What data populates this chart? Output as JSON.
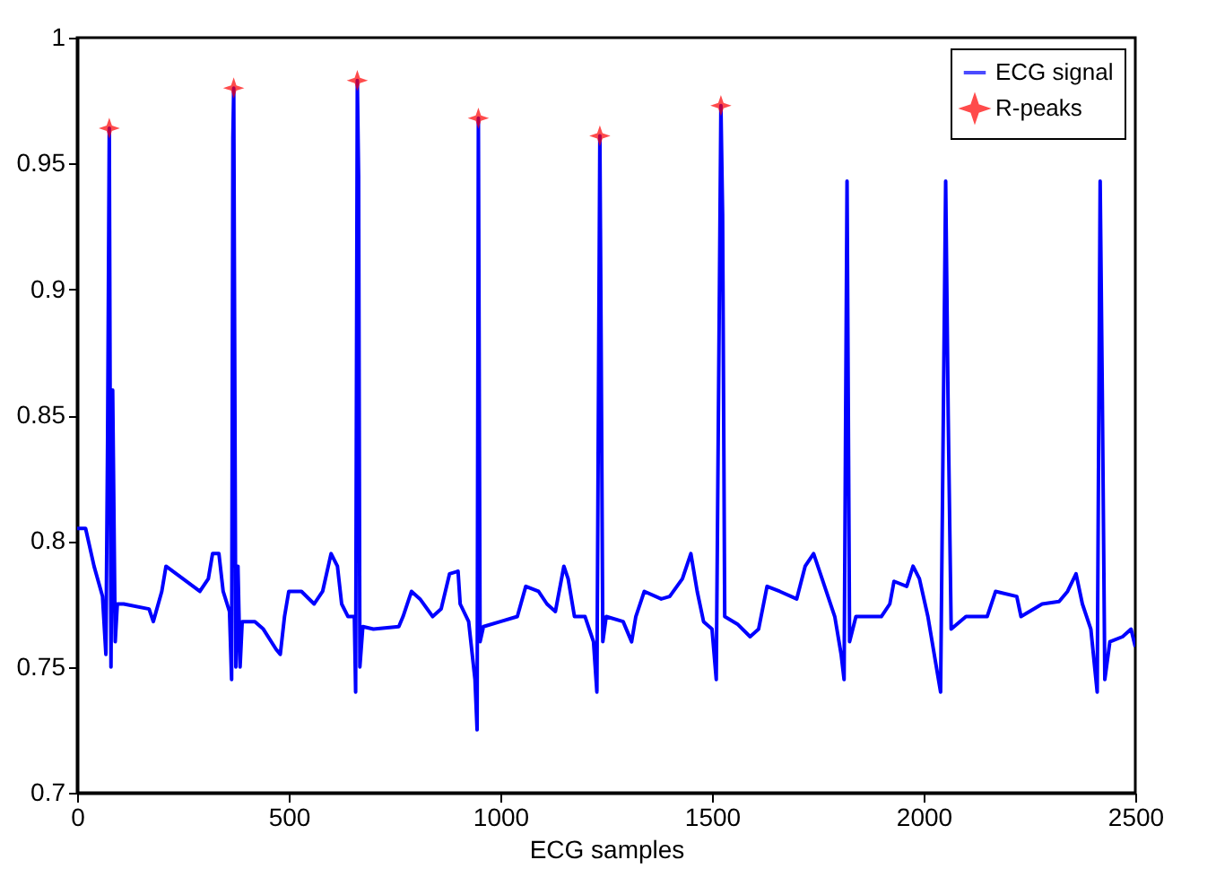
{
  "chart_data": {
    "type": "line",
    "xlabel": "ECG samples",
    "xlim": [
      0,
      2500
    ],
    "xticks": [
      0,
      500,
      1000,
      1500,
      2000,
      2500
    ],
    "ylim": [
      0.7,
      1
    ],
    "yticks": [
      0.7,
      0.75,
      0.8,
      0.85,
      0.9,
      0.95,
      1
    ],
    "grid": false,
    "legend": "top right",
    "series": [
      {
        "name": "ECG signal",
        "color": "#0000ff",
        "line_style": "solid",
        "x": [
          0,
          20,
          40,
          60,
          68,
          72,
          76,
          80,
          84,
          90,
          95,
          110,
          170,
          180,
          200,
          210,
          250,
          290,
          310,
          320,
          335,
          345,
          360,
          365,
          368,
          370,
          375,
          380,
          385,
          390,
          420,
          440,
          470,
          480,
          490,
          500,
          530,
          560,
          580,
          600,
          615,
          625,
          640,
          655,
          658,
          662,
          665,
          668,
          675,
          700,
          760,
          770,
          790,
          810,
          840,
          860,
          880,
          900,
          905,
          925,
          940,
          945,
          948,
          952,
          960,
          1000,
          1040,
          1060,
          1090,
          1110,
          1130,
          1150,
          1160,
          1175,
          1200,
          1220,
          1228,
          1235,
          1238,
          1242,
          1250,
          1290,
          1310,
          1320,
          1340,
          1380,
          1400,
          1430,
          1450,
          1465,
          1480,
          1500,
          1510,
          1521,
          1525,
          1530,
          1560,
          1590,
          1610,
          1630,
          1660,
          1700,
          1720,
          1740,
          1760,
          1790,
          1805,
          1812,
          1819,
          1825,
          1840,
          1900,
          1920,
          1930,
          1960,
          1975,
          1990,
          2010,
          2040,
          2052,
          2058,
          2065,
          2100,
          2150,
          2170,
          2220,
          2230,
          2280,
          2320,
          2340,
          2360,
          2375,
          2395,
          2410,
          2417,
          2422,
          2428,
          2440,
          2470,
          2490,
          2500
        ],
        "values": [
          0.805,
          0.805,
          0.79,
          0.778,
          0.755,
          0.84,
          0.964,
          0.75,
          0.86,
          0.76,
          0.775,
          0.775,
          0.773,
          0.768,
          0.78,
          0.79,
          0.785,
          0.78,
          0.785,
          0.795,
          0.795,
          0.78,
          0.772,
          0.745,
          0.96,
          0.98,
          0.75,
          0.79,
          0.75,
          0.768,
          0.768,
          0.765,
          0.757,
          0.755,
          0.77,
          0.78,
          0.78,
          0.775,
          0.78,
          0.795,
          0.79,
          0.775,
          0.77,
          0.77,
          0.74,
          0.983,
          0.945,
          0.75,
          0.766,
          0.765,
          0.766,
          0.77,
          0.78,
          0.777,
          0.77,
          0.773,
          0.787,
          0.788,
          0.775,
          0.768,
          0.745,
          0.725,
          0.968,
          0.76,
          0.766,
          0.768,
          0.77,
          0.782,
          0.78,
          0.775,
          0.772,
          0.79,
          0.785,
          0.77,
          0.77,
          0.76,
          0.74,
          0.961,
          0.88,
          0.76,
          0.77,
          0.768,
          0.76,
          0.77,
          0.78,
          0.777,
          0.778,
          0.785,
          0.795,
          0.78,
          0.768,
          0.765,
          0.745,
          0.973,
          0.93,
          0.77,
          0.767,
          0.762,
          0.765,
          0.782,
          0.78,
          0.777,
          0.79,
          0.795,
          0.785,
          0.77,
          0.755,
          0.745,
          0.943,
          0.76,
          0.77,
          0.77,
          0.775,
          0.784,
          0.782,
          0.79,
          0.785,
          0.77,
          0.74,
          0.943,
          0.85,
          0.765,
          0.77,
          0.77,
          0.78,
          0.778,
          0.77,
          0.775,
          0.776,
          0.78,
          0.787,
          0.775,
          0.765,
          0.74,
          0.943,
          0.86,
          0.745,
          0.76,
          0.762,
          0.765,
          0.758
        ]
      },
      {
        "name": "R-peaks",
        "color": "#ff0000",
        "type": "scatter",
        "marker": "star",
        "x": [
          76,
          370,
          662,
          948,
          1235,
          1521
        ],
        "values": [
          0.964,
          0.98,
          0.983,
          0.968,
          0.961,
          0.973
        ]
      }
    ]
  }
}
